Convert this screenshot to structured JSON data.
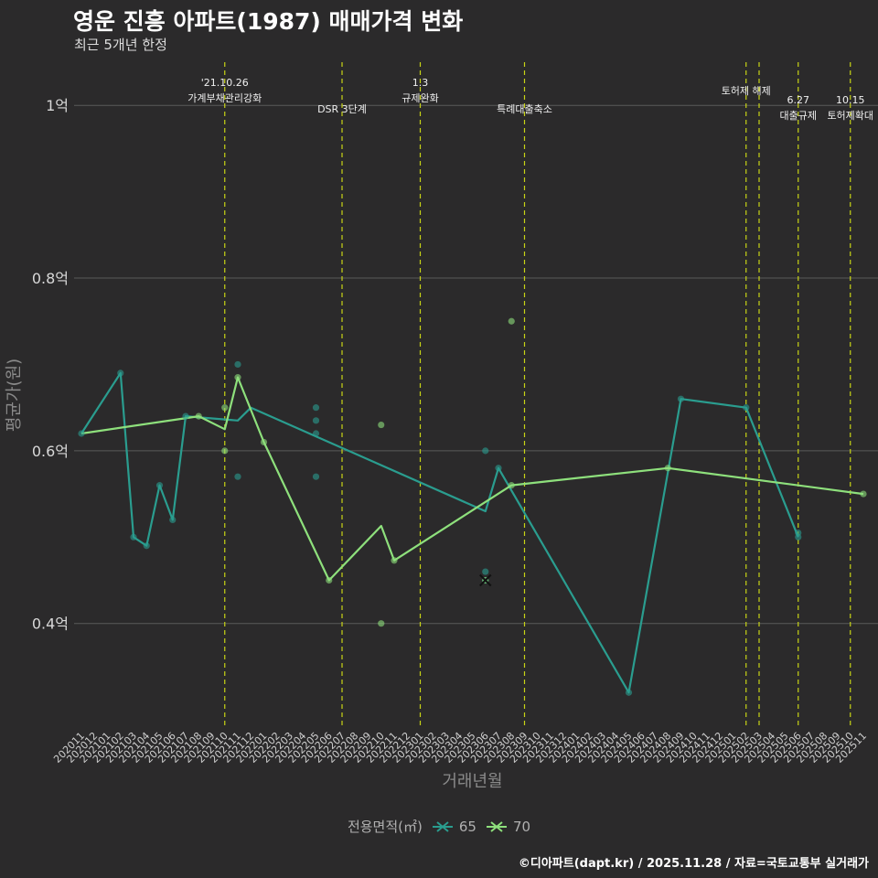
{
  "title": "영운 진흥 아파트(1987) 매매가격 변화",
  "subtitle": "최근 5개년 한정",
  "caption": "©디아파트(dapt.kr) / 2025.11.28 / 자료=국토교통부 실거래가",
  "legend": {
    "title": "전용면적(㎡)",
    "items": [
      {
        "label": "65",
        "color": "#2a9d8f"
      },
      {
        "label": "70",
        "color": "#8ee07c"
      }
    ]
  },
  "colors": {
    "background": "#2b2a2b",
    "grid": "#5a5a5a",
    "vline": "#c8d416",
    "series65": "#2a9d8f",
    "series70": "#8ee07c"
  },
  "chart_data": {
    "type": "line",
    "title": "영운 진흥 아파트(1987) 매매가격 변화",
    "xlabel": "거래년월",
    "ylabel": "평균가(원)",
    "ylim": [
      0.28,
      1.05
    ],
    "y_ticks": [
      {
        "value": 0.4,
        "label": "0.4억"
      },
      {
        "value": 0.6,
        "label": "0.6억"
      },
      {
        "value": 0.8,
        "label": "0.8억"
      },
      {
        "value": 1.0,
        "label": "1억"
      }
    ],
    "categories": [
      "202011",
      "202012",
      "202101",
      "202102",
      "202103",
      "202104",
      "202105",
      "202106",
      "202107",
      "202108",
      "202109",
      "202110",
      "202111",
      "202112",
      "202201",
      "202202",
      "202203",
      "202204",
      "202205",
      "202206",
      "202207",
      "202208",
      "202209",
      "202210",
      "202211",
      "202212",
      "202301",
      "202302",
      "202303",
      "202304",
      "202305",
      "202306",
      "202307",
      "202308",
      "202309",
      "202310",
      "202311",
      "202312",
      "202401",
      "202402",
      "202403",
      "202404",
      "202405",
      "202406",
      "202407",
      "202408",
      "202409",
      "202410",
      "202411",
      "202412",
      "202501",
      "202502",
      "202503",
      "202504",
      "202505",
      "202506",
      "202507",
      "202508",
      "202509",
      "202510",
      "202511"
    ],
    "series": [
      {
        "name": "65",
        "line": [
          [
            "202011",
            0.62
          ],
          [
            "202102",
            0.69
          ],
          [
            "202103",
            0.5
          ],
          [
            "202104",
            0.49
          ],
          [
            "202105",
            0.56
          ],
          [
            "202106",
            0.52
          ],
          [
            "202107",
            0.64
          ],
          [
            "202111",
            0.635
          ],
          [
            "202112",
            0.65
          ],
          [
            "202306",
            0.53
          ],
          [
            "202307",
            0.58
          ],
          [
            "202405",
            0.32
          ],
          [
            "202409",
            0.66
          ],
          [
            "202502",
            0.65
          ],
          [
            "202506",
            0.5
          ]
        ],
        "points": [
          [
            "202011",
            0.62
          ],
          [
            "202102",
            0.69
          ],
          [
            "202103",
            0.5
          ],
          [
            "202104",
            0.49
          ],
          [
            "202105",
            0.56
          ],
          [
            "202106",
            0.52
          ],
          [
            "202107",
            0.64
          ],
          [
            "202111",
            0.7
          ],
          [
            "202111",
            0.57
          ],
          [
            "202205",
            0.65
          ],
          [
            "202205",
            0.635
          ],
          [
            "202205",
            0.62
          ],
          [
            "202205",
            0.57
          ],
          [
            "202306",
            0.6
          ],
          [
            "202306",
            0.46
          ],
          [
            "202306",
            0.45
          ],
          [
            "202307",
            0.58
          ],
          [
            "202405",
            0.32
          ],
          [
            "202409",
            0.66
          ],
          [
            "202502",
            0.65
          ],
          [
            "202506",
            0.5
          ],
          [
            "202506",
            0.505
          ]
        ]
      },
      {
        "name": "70",
        "line": [
          [
            "202011",
            0.62
          ],
          [
            "202108",
            0.64
          ],
          [
            "202110",
            0.625
          ],
          [
            "202111",
            0.685
          ],
          [
            "202201",
            0.61
          ],
          [
            "202206",
            0.45
          ],
          [
            "202210",
            0.513
          ],
          [
            "202211",
            0.473
          ],
          [
            "202308",
            0.56
          ],
          [
            "202408",
            0.58
          ],
          [
            "202511",
            0.55
          ]
        ],
        "points": [
          [
            "202108",
            0.64
          ],
          [
            "202110",
            0.65
          ],
          [
            "202110",
            0.6
          ],
          [
            "202111",
            0.685
          ],
          [
            "202201",
            0.61
          ],
          [
            "202206",
            0.45
          ],
          [
            "202210",
            0.63
          ],
          [
            "202210",
            0.4
          ],
          [
            "202211",
            0.473
          ],
          [
            "202306",
            0.45
          ],
          [
            "202308",
            0.75
          ],
          [
            "202308",
            0.56
          ],
          [
            "202408",
            0.58
          ],
          [
            "202511",
            0.55
          ]
        ]
      }
    ],
    "annotations": [
      {
        "x": "202110",
        "date": "'21.10.26",
        "label": "가계부채관리강화",
        "row": "top"
      },
      {
        "x": "202207",
        "date": "",
        "label": "DSR 3단계",
        "row": "low"
      },
      {
        "x": "202301",
        "date": "1.3",
        "label": "규제완화",
        "row": "top"
      },
      {
        "x": "202309",
        "date": "",
        "label": "특례대출축소",
        "row": "low"
      },
      {
        "x": "202502",
        "date": "",
        "label": "토허제 해제",
        "row": "mid"
      },
      {
        "x": "202503",
        "date": "",
        "label": "",
        "row": "none"
      },
      {
        "x": "202506",
        "date": "6.27",
        "label": "대출규제",
        "row": "low2"
      },
      {
        "x": "202510",
        "date": "10.15",
        "label": "토허제확대",
        "row": "low2"
      }
    ],
    "x_markers": [
      [
        "202306",
        0.45
      ]
    ]
  }
}
